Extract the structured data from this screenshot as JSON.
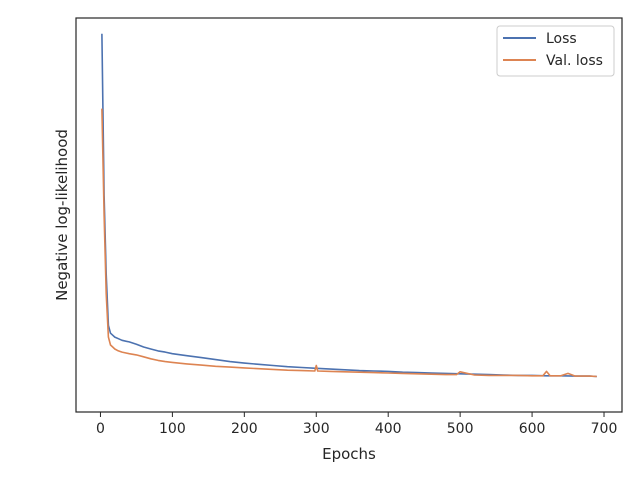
{
  "chart_data": {
    "type": "line",
    "title": "",
    "xlabel": "Epochs",
    "ylabel": "Negative log-likelihood",
    "xlim": [
      -34,
      725
    ],
    "ylim": [
      0,
      1
    ],
    "x_ticks": [
      0,
      100,
      200,
      300,
      400,
      500,
      600,
      700
    ],
    "x_tick_labels": [
      "0",
      "100",
      "200",
      "300",
      "400",
      "500",
      "600",
      "700"
    ],
    "y_tick_labels_shown": false,
    "grid": false,
    "legend_position": "top-right",
    "series": [
      {
        "name": "Loss",
        "color": "#4c72b0",
        "x": [
          2,
          5,
          8,
          11,
          14,
          17,
          20,
          25,
          30,
          40,
          50,
          60,
          70,
          80,
          90,
          100,
          120,
          140,
          160,
          180,
          200,
          220,
          240,
          260,
          280,
          300,
          320,
          340,
          360,
          380,
          400,
          420,
          440,
          460,
          480,
          500,
          520,
          540,
          560,
          580,
          600,
          620,
          640,
          660,
          680,
          690
        ],
        "y": [
          0.96,
          0.55,
          0.35,
          0.22,
          0.2,
          0.195,
          0.19,
          0.186,
          0.182,
          0.178,
          0.172,
          0.165,
          0.16,
          0.155,
          0.152,
          0.148,
          0.143,
          0.138,
          0.133,
          0.128,
          0.124,
          0.121,
          0.118,
          0.115,
          0.113,
          0.111,
          0.109,
          0.107,
          0.105,
          0.104,
          0.103,
          0.101,
          0.1,
          0.099,
          0.098,
          0.097,
          0.096,
          0.095,
          0.094,
          0.093,
          0.093,
          0.092,
          0.092,
          0.091,
          0.091,
          0.09
        ]
      },
      {
        "name": "Val. loss",
        "color": "#dd8452",
        "x": [
          2,
          5,
          8,
          11,
          14,
          17,
          20,
          25,
          30,
          40,
          50,
          60,
          70,
          80,
          90,
          100,
          120,
          140,
          160,
          180,
          200,
          220,
          240,
          260,
          280,
          298,
          300,
          302,
          320,
          340,
          360,
          380,
          400,
          420,
          440,
          460,
          480,
          495,
          500,
          520,
          540,
          560,
          580,
          600,
          615,
          620,
          625,
          640,
          650,
          660,
          680,
          690
        ],
        "y": [
          0.77,
          0.5,
          0.3,
          0.19,
          0.17,
          0.165,
          0.16,
          0.155,
          0.152,
          0.148,
          0.145,
          0.14,
          0.135,
          0.131,
          0.128,
          0.126,
          0.122,
          0.119,
          0.116,
          0.114,
          0.112,
          0.11,
          0.108,
          0.106,
          0.105,
          0.104,
          0.118,
          0.104,
          0.103,
          0.102,
          0.101,
          0.1,
          0.099,
          0.098,
          0.097,
          0.096,
          0.095,
          0.095,
          0.102,
          0.094,
          0.093,
          0.093,
          0.093,
          0.092,
          0.092,
          0.103,
          0.092,
          0.092,
          0.098,
          0.091,
          0.091,
          0.09
        ]
      }
    ]
  }
}
